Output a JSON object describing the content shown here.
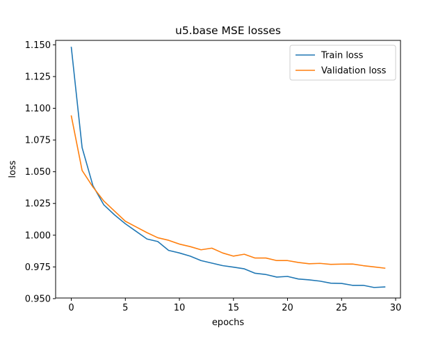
{
  "chart_data": {
    "type": "line",
    "title": "u5.base MSE losses",
    "xlabel": "epochs",
    "ylabel": "loss",
    "xlim": [
      -1.45,
      30.45
    ],
    "ylim": [
      0.9505,
      1.1535
    ],
    "xticks": [
      0,
      5,
      10,
      15,
      20,
      25,
      30
    ],
    "yticks": [
      0.95,
      0.975,
      1.0,
      1.025,
      1.05,
      1.075,
      1.1,
      1.125,
      1.15
    ],
    "xtick_labels": [
      "0",
      "5",
      "10",
      "15",
      "20",
      "25",
      "30"
    ],
    "ytick_labels": [
      "0.950",
      "0.975",
      "1.000",
      "1.025",
      "1.050",
      "1.075",
      "1.100",
      "1.125",
      "1.150"
    ],
    "grid": false,
    "legend": {
      "placement": "top-right"
    },
    "x": [
      0,
      1,
      2,
      3,
      4,
      5,
      6,
      7,
      8,
      9,
      10,
      11,
      12,
      13,
      14,
      15,
      16,
      17,
      18,
      19,
      20,
      21,
      22,
      23,
      24,
      25,
      26,
      27,
      28,
      29
    ],
    "series": [
      {
        "name": "Train loss",
        "color": "#1f77b4",
        "values": [
          1.148,
          1.069,
          1.039,
          1.024,
          1.016,
          1.009,
          1.003,
          0.997,
          0.995,
          0.988,
          0.986,
          0.9835,
          0.98,
          0.978,
          0.976,
          0.9748,
          0.9735,
          0.97,
          0.969,
          0.967,
          0.9675,
          0.9655,
          0.9648,
          0.9638,
          0.9622,
          0.962,
          0.9605,
          0.9605,
          0.9588,
          0.9592
        ]
      },
      {
        "name": "Validation loss",
        "color": "#ff7f0e",
        "values": [
          1.094,
          1.051,
          1.038,
          1.027,
          1.019,
          1.011,
          1.0065,
          1.002,
          0.998,
          0.996,
          0.993,
          0.991,
          0.9885,
          0.9898,
          0.986,
          0.9835,
          0.985,
          0.982,
          0.982,
          0.98,
          0.98,
          0.9785,
          0.9775,
          0.9778,
          0.977,
          0.9772,
          0.9773,
          0.976,
          0.975,
          0.974
        ]
      }
    ]
  }
}
